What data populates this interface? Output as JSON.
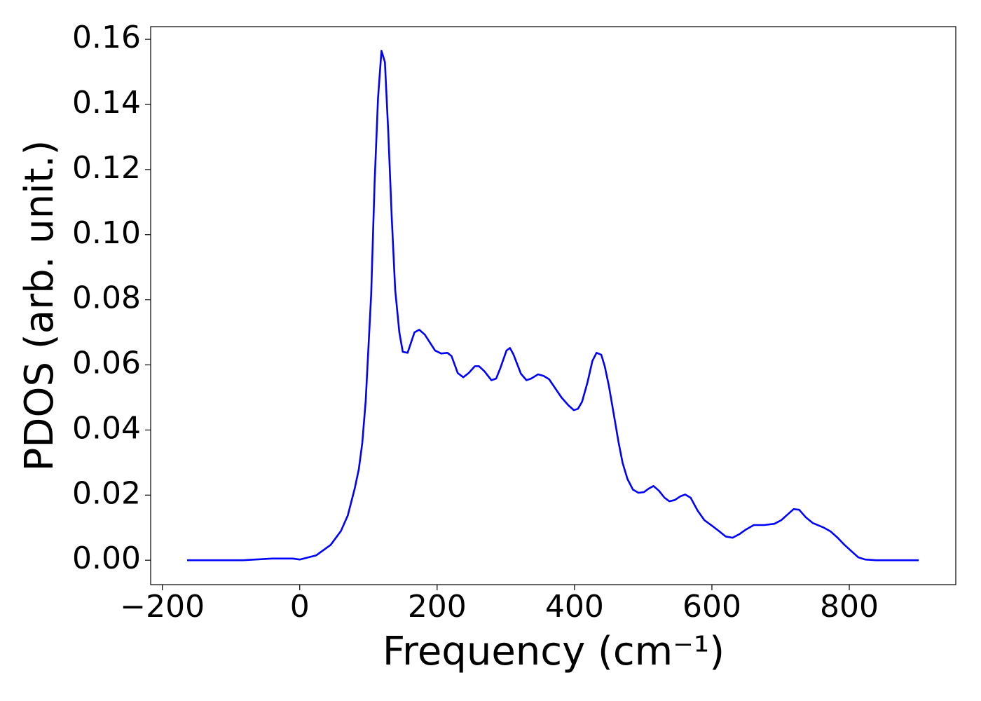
{
  "chart_data": {
    "type": "line",
    "xlabel": "Frequency (cm⁻¹)",
    "ylabel": "PDOS (arb. unit.)",
    "x": [
      -164,
      -83,
      -40,
      -10,
      0,
      24,
      45,
      60,
      70,
      80,
      86,
      91,
      96,
      104,
      109,
      114,
      119,
      124,
      129,
      134,
      139,
      145,
      150,
      157,
      167,
      174,
      182,
      197,
      206,
      215,
      221,
      230,
      238,
      246,
      255,
      261,
      269,
      279,
      286,
      292,
      301,
      306,
      311,
      322,
      330,
      337,
      347,
      355,
      363,
      373,
      381,
      391,
      399,
      405,
      411,
      419,
      426,
      432,
      439,
      444,
      450,
      457,
      464,
      470,
      477,
      485,
      493,
      501,
      508,
      515,
      523,
      531,
      538,
      546,
      554,
      561,
      569,
      579,
      589,
      600,
      610,
      620,
      630,
      640,
      650,
      661,
      676,
      691,
      701,
      711,
      719,
      727,
      737,
      747,
      762,
      773,
      783,
      793,
      803,
      813,
      823,
      839,
      901
    ],
    "series": [
      {
        "name": "PDOS",
        "color": "#0000ff",
        "values": [
          0,
          0,
          0.0005,
          0.0005,
          0.0002,
          0.0015,
          0.0047,
          0.009,
          0.0138,
          0.022,
          0.028,
          0.036,
          0.049,
          0.0816,
          0.116,
          0.142,
          0.1565,
          0.153,
          0.131,
          0.105,
          0.083,
          0.07,
          0.064,
          0.0637,
          0.07,
          0.0708,
          0.0693,
          0.0644,
          0.0635,
          0.0637,
          0.0627,
          0.0575,
          0.0562,
          0.0575,
          0.0596,
          0.0596,
          0.058,
          0.0553,
          0.0558,
          0.059,
          0.0644,
          0.0652,
          0.0633,
          0.0573,
          0.0553,
          0.0558,
          0.0571,
          0.0566,
          0.0556,
          0.0525,
          0.05,
          0.0476,
          0.0461,
          0.0465,
          0.0487,
          0.0547,
          0.0612,
          0.0637,
          0.0631,
          0.0596,
          0.0536,
          0.045,
          0.0364,
          0.0299,
          0.025,
          0.0217,
          0.0207,
          0.0209,
          0.022,
          0.0228,
          0.0213,
          0.0192,
          0.0181,
          0.0185,
          0.0196,
          0.0202,
          0.0192,
          0.0153,
          0.0123,
          0.0106,
          0.009,
          0.0073,
          0.0069,
          0.008,
          0.0095,
          0.0108,
          0.0108,
          0.0112,
          0.0123,
          0.0142,
          0.0157,
          0.0155,
          0.0131,
          0.0114,
          0.0101,
          0.0088,
          0.0069,
          0.0047,
          0.0028,
          0.0009,
          0.0002,
          0,
          0
        ]
      }
    ],
    "xlim": [
      -217,
      955
    ],
    "xticks": [
      {
        "value": -200,
        "label": "−200"
      },
      0,
      200,
      400,
      600,
      800
    ],
    "ylim": [
      -0.0075,
      0.1639
    ],
    "yticks": [
      {
        "value": 0,
        "label": "0.00"
      },
      {
        "value": 0.02,
        "label": "0.02"
      },
      {
        "value": 0.04,
        "label": "0.04"
      },
      {
        "value": 0.06,
        "label": "0.06"
      },
      {
        "value": 0.08,
        "label": "0.08"
      },
      {
        "value": 0.1,
        "label": "0.10"
      },
      {
        "value": 0.12,
        "label": "0.12"
      },
      {
        "value": 0.14,
        "label": "0.14"
      },
      {
        "value": 0.16,
        "label": "0.16"
      }
    ]
  }
}
